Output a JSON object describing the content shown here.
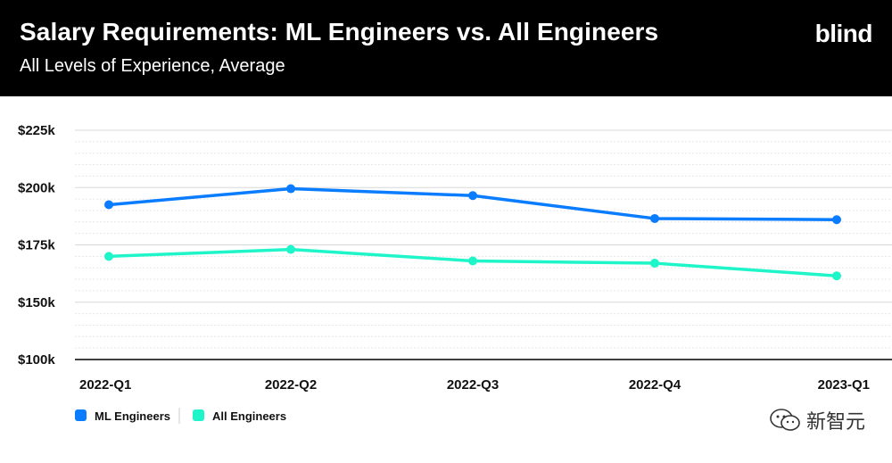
{
  "header": {
    "title": "Salary Requirements: ML Engineers vs. All Engineers",
    "subtitle": "All Levels of Experience, Average",
    "brand": "blind"
  },
  "watermark": {
    "text": "新智元"
  },
  "colors": {
    "ml": "#0a7cff",
    "all": "#1ef5c8",
    "grid": "#d8d8d8",
    "axis": "#000000"
  },
  "chart_data": {
    "type": "line",
    "categories": [
      "2022-Q1",
      "2022-Q2",
      "2022-Q3",
      "2022-Q4",
      "2023-Q1"
    ],
    "series": [
      {
        "name": "ML Engineers",
        "values": [
          192500,
          199500,
          196500,
          186500,
          186000
        ]
      },
      {
        "name": "All Engineers",
        "values": [
          170000,
          173000,
          168000,
          167000,
          161500
        ]
      }
    ],
    "yticks": [
      100000,
      150000,
      175000,
      200000,
      225000
    ],
    "ytick_labels": [
      "$100k",
      "$150k",
      "$175k",
      "$200k",
      "$225k"
    ],
    "ylim": [
      100000,
      225000
    ],
    "title": "Salary Requirements: ML Engineers vs. All Engineers",
    "legend_position": "bottom-left"
  }
}
